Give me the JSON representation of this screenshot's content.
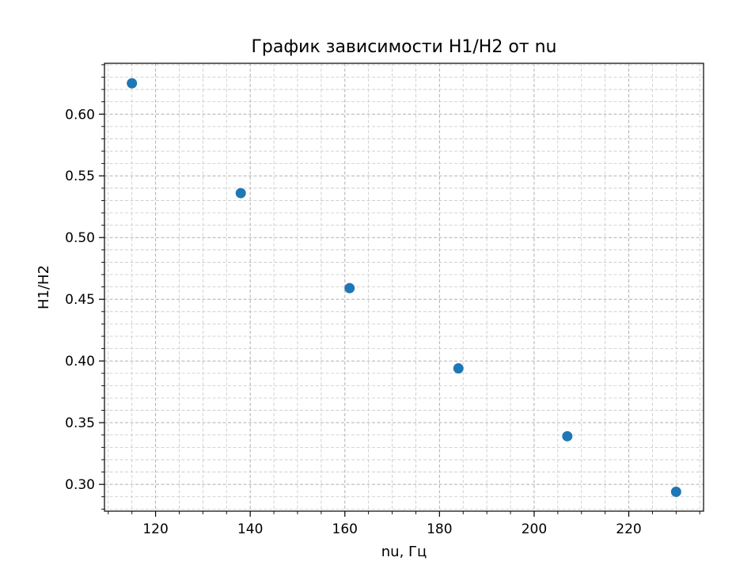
{
  "chart_data": {
    "type": "scatter",
    "title": "График зависимости H1/H2 от nu",
    "xlabel": "nu, Гц",
    "ylabel": "H1/H2",
    "xlim": [
      109.2,
      235.8
    ],
    "ylim": [
      0.2783,
      0.6412
    ],
    "x_ticks": [
      120,
      140,
      160,
      180,
      200,
      220
    ],
    "x_tick_labels": [
      "120",
      "140",
      "160",
      "180",
      "200",
      "220"
    ],
    "x_minor_step": 5,
    "y_ticks": [
      0.3,
      0.35,
      0.4,
      0.45,
      0.5,
      0.55,
      0.6
    ],
    "y_tick_labels": [
      "0.30",
      "0.35",
      "0.40",
      "0.45",
      "0.50",
      "0.55",
      "0.60"
    ],
    "y_minor_step": 0.01,
    "grid": true,
    "minor_grid": true,
    "series": [
      {
        "color": "#1f77b4",
        "points": [
          {
            "x": 115,
            "y": 0.625
          },
          {
            "x": 138,
            "y": 0.536
          },
          {
            "x": 161,
            "y": 0.459
          },
          {
            "x": 184,
            "y": 0.394
          },
          {
            "x": 207,
            "y": 0.339
          },
          {
            "x": 230,
            "y": 0.294
          }
        ]
      }
    ]
  }
}
